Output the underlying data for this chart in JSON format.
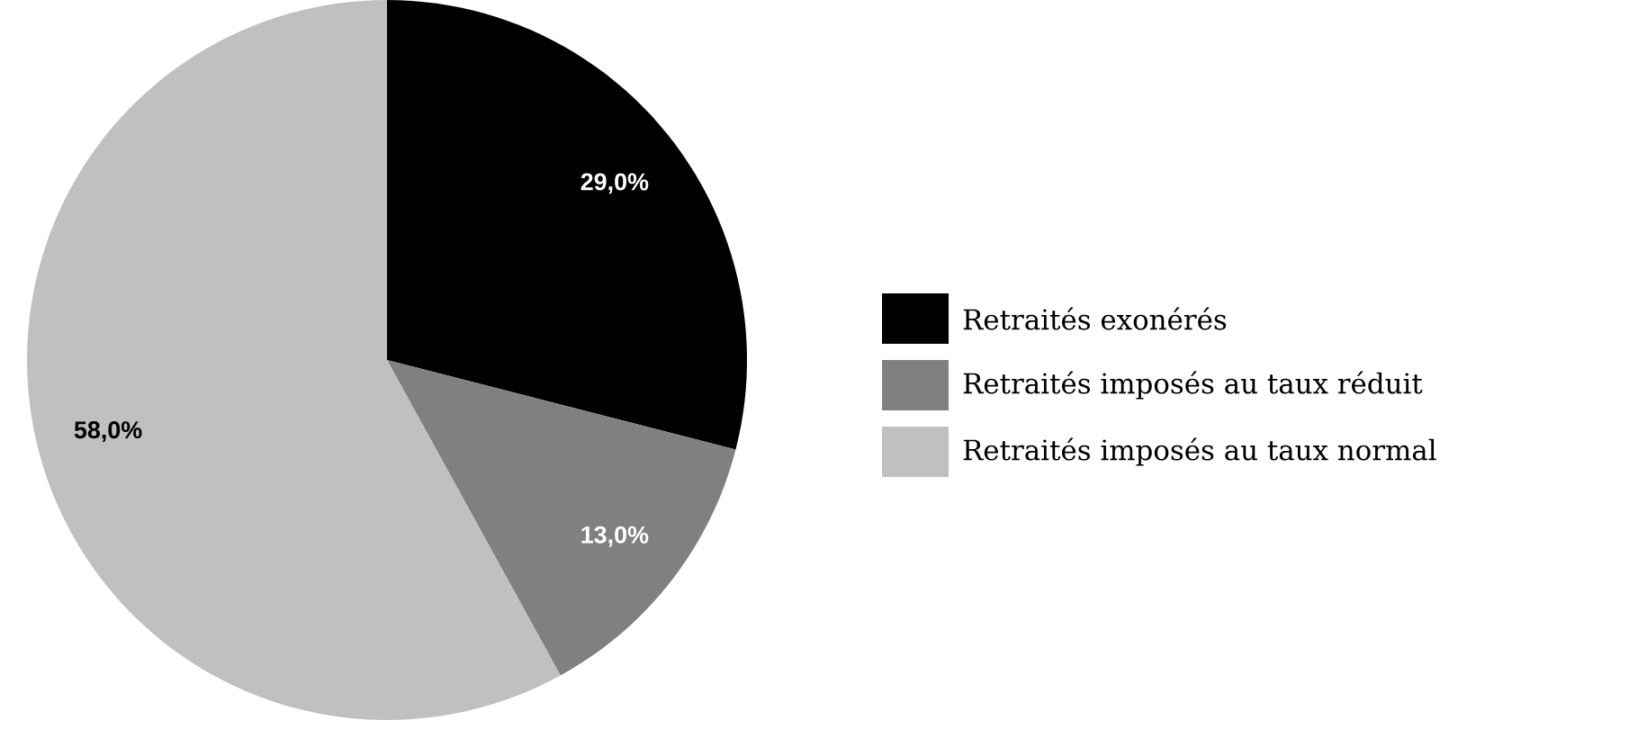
{
  "chart_data": {
    "type": "pie",
    "categories": [
      "Retraités exonérés",
      "Retraités imposés au taux réduit",
      "Retraités imposés au taux normal"
    ],
    "values": [
      29,
      13,
      58
    ],
    "colors": [
      "#000000",
      "#808080",
      "#c0c0c0"
    ],
    "value_labels": [
      "29,0%",
      "13,0%",
      "58,0%"
    ],
    "legend": "right"
  }
}
